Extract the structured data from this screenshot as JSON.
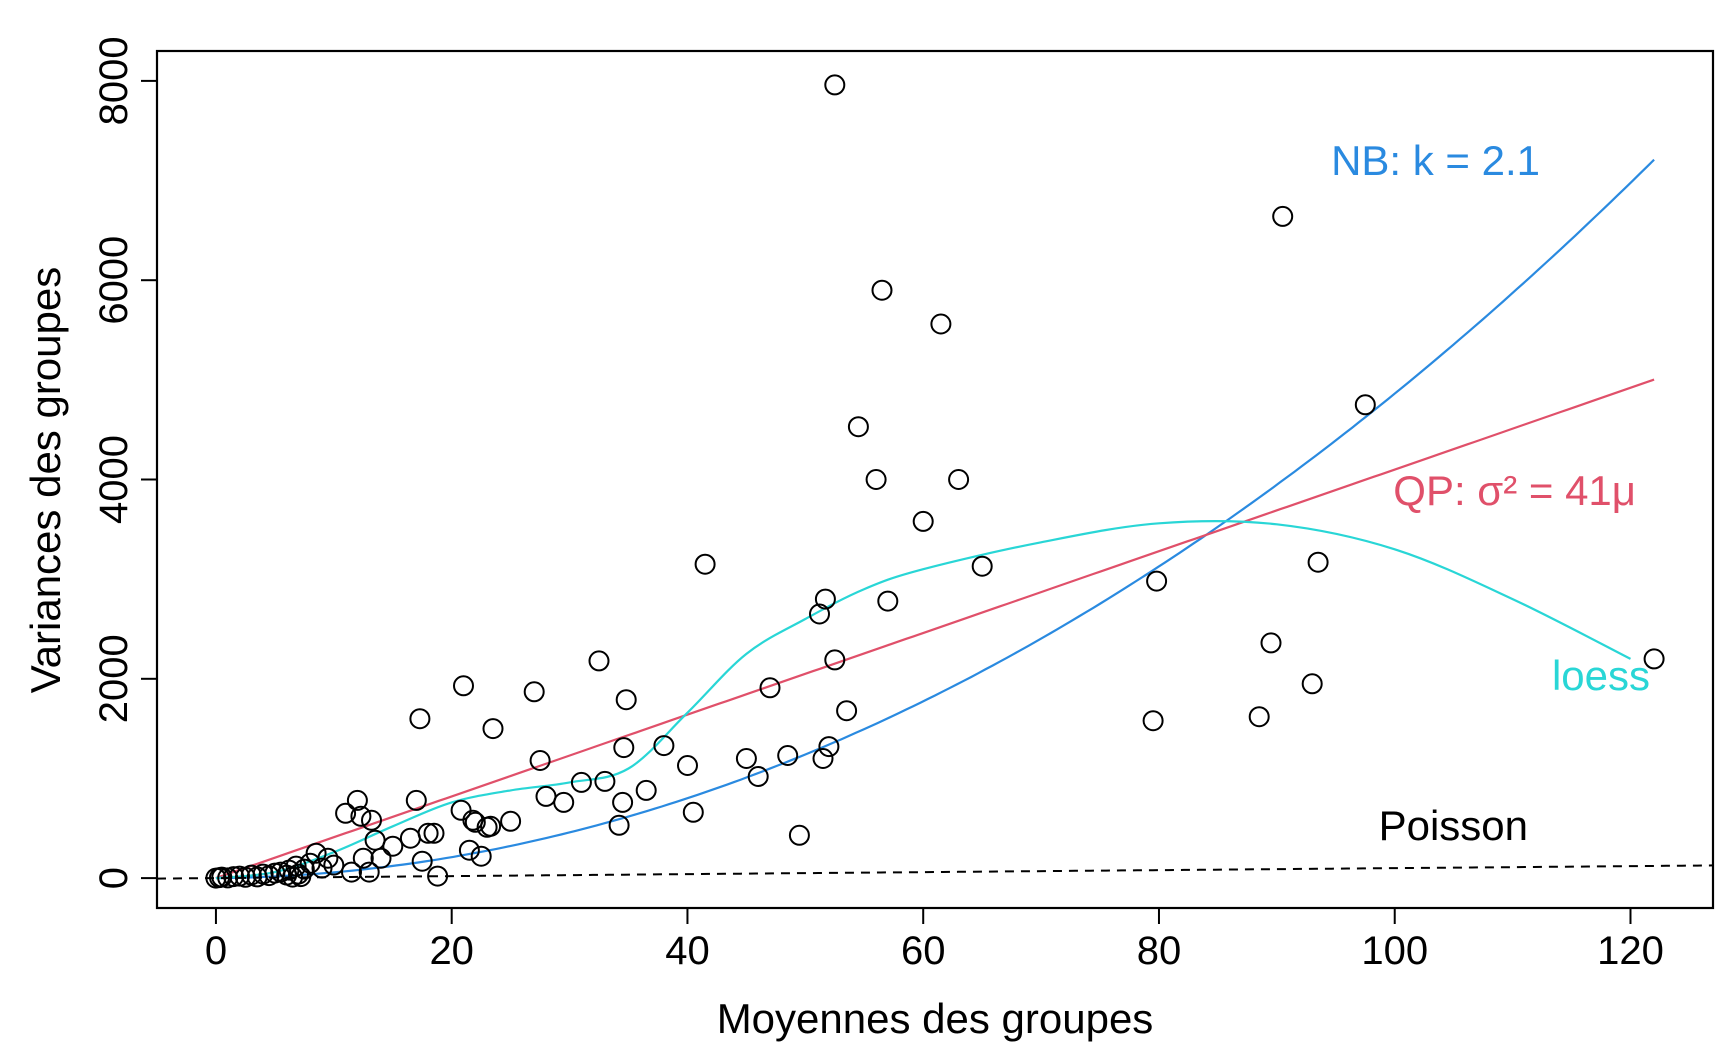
{
  "chart_data": {
    "type": "scatter",
    "title": "",
    "xlabel": "Moyennes des groupes",
    "ylabel": "Variances des groupes",
    "xlim": [
      -5,
      127
    ],
    "ylim": [
      -300,
      8300
    ],
    "xticks": [
      0,
      20,
      40,
      60,
      80,
      100,
      120
    ],
    "yticks": [
      0,
      2000,
      4000,
      6000,
      8000
    ],
    "xtick_labels": [
      "0",
      "20",
      "40",
      "60",
      "80",
      "100",
      "120"
    ],
    "ytick_labels": [
      "0",
      "2000",
      "4000",
      "6000",
      "8000"
    ],
    "grid": false,
    "points": [
      [
        0,
        0
      ],
      [
        0.3,
        5
      ],
      [
        0.5,
        10
      ],
      [
        1,
        2
      ],
      [
        1.5,
        15
      ],
      [
        2,
        20
      ],
      [
        2.5,
        8
      ],
      [
        3,
        30
      ],
      [
        3.5,
        12
      ],
      [
        4,
        40
      ],
      [
        4.5,
        25
      ],
      [
        5,
        50
      ],
      [
        5.5,
        60
      ],
      [
        6,
        30
      ],
      [
        6.2,
        80
      ],
      [
        6.5,
        10
      ],
      [
        6.8,
        120
      ],
      [
        7,
        40
      ],
      [
        7.2,
        15
      ],
      [
        7.5,
        90
      ],
      [
        8,
        150
      ],
      [
        8.5,
        250
      ],
      [
        9,
        100
      ],
      [
        9.5,
        200
      ],
      [
        10,
        130
      ],
      [
        11,
        650
      ],
      [
        11.5,
        60
      ],
      [
        12,
        780
      ],
      [
        12.3,
        620
      ],
      [
        12.5,
        200
      ],
      [
        13,
        60
      ],
      [
        13.2,
        580
      ],
      [
        13.5,
        380
      ],
      [
        14,
        200
      ],
      [
        15,
        320
      ],
      [
        16.5,
        400
      ],
      [
        17,
        780
      ],
      [
        17.3,
        1600
      ],
      [
        17.5,
        170
      ],
      [
        18,
        450
      ],
      [
        18.5,
        450
      ],
      [
        18.8,
        20
      ],
      [
        21,
        1930
      ],
      [
        20.8,
        680
      ],
      [
        21.5,
        280
      ],
      [
        21.8,
        580
      ],
      [
        22,
        560
      ],
      [
        22.5,
        220
      ],
      [
        23,
        510
      ],
      [
        23.3,
        520
      ],
      [
        23.5,
        1500
      ],
      [
        25,
        570
      ],
      [
        27,
        1870
      ],
      [
        27.5,
        1180
      ],
      [
        28,
        820
      ],
      [
        29.5,
        760
      ],
      [
        31,
        960
      ],
      [
        32.5,
        2180
      ],
      [
        33,
        970
      ],
      [
        34.2,
        530
      ],
      [
        34.5,
        760
      ],
      [
        34.6,
        1310
      ],
      [
        34.8,
        1790
      ],
      [
        36.5,
        880
      ],
      [
        38,
        1330
      ],
      [
        40,
        1130
      ],
      [
        40.5,
        660
      ],
      [
        41.5,
        3150
      ],
      [
        45,
        1200
      ],
      [
        46,
        1020
      ],
      [
        47,
        1910
      ],
      [
        48.5,
        1230
      ],
      [
        49.5,
        430
      ],
      [
        51.2,
        2650
      ],
      [
        51.5,
        1200
      ],
      [
        51.7,
        2800
      ],
      [
        52,
        1320
      ],
      [
        52.5,
        7960
      ],
      [
        52.5,
        2190
      ],
      [
        53.5,
        1680
      ],
      [
        54.5,
        4530
      ],
      [
        56,
        4000
      ],
      [
        56.5,
        5900
      ],
      [
        57,
        2780
      ],
      [
        60,
        3580
      ],
      [
        61.5,
        5560
      ],
      [
        63,
        4000
      ],
      [
        65,
        3130
      ],
      [
        79.5,
        1580
      ],
      [
        79.8,
        2980
      ],
      [
        88.5,
        1620
      ],
      [
        89.5,
        2360
      ],
      [
        90.5,
        6640
      ],
      [
        93,
        1950
      ],
      [
        93.5,
        3170
      ],
      [
        97.5,
        4750
      ],
      [
        122,
        2200
      ]
    ],
    "series": [
      {
        "name": "NB: k = 2.1",
        "type": "line",
        "color": "#2a8ae0",
        "formula": "mu + mu^2/2.1",
        "label_pos": "top-right"
      },
      {
        "name": "QP: σ² = 41μ",
        "type": "line",
        "color": "#e0506a",
        "formula": "41*mu",
        "label_pos": "right"
      },
      {
        "name": "loess",
        "type": "line",
        "color": "#29d6d6",
        "x": [
          0,
          5,
          10,
          15,
          20,
          25,
          30,
          35,
          40,
          45,
          50,
          55,
          60,
          70,
          80,
          90,
          100,
          110,
          120
        ],
        "y": [
          0,
          60,
          260,
          520,
          760,
          880,
          960,
          1100,
          1660,
          2250,
          2600,
          2900,
          3100,
          3370,
          3560,
          3550,
          3300,
          2800,
          2200
        ]
      },
      {
        "name": "Poisson",
        "type": "line",
        "color": "#000000",
        "dash": true,
        "formula": "mu"
      }
    ]
  }
}
